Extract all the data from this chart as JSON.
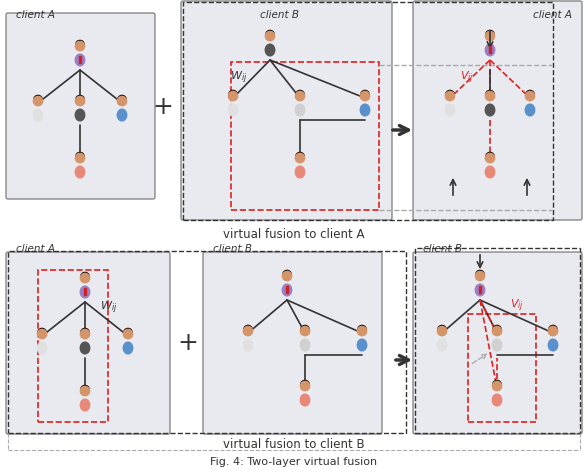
{
  "fig_width": 5.88,
  "fig_height": 4.72,
  "dpi": 100,
  "bg_color": "#ffffff",
  "panel_bg": "#e8eaf0",
  "panel_bg2": "#e0e8e0",
  "title": "Fig. 4: Two-layer virtual fusion",
  "top_caption": "virtual fusion to client A",
  "bottom_caption": "virtual fusion to client B",
  "red_box_color": "#e03030",
  "black_dash_color": "#333333",
  "gray_dash_color": "#aaaaaa",
  "red_dash_color": "#e03030",
  "colors": {
    "purple_shirt": "#9b7fc4",
    "white_shirt": "#e8e8e8",
    "blue_shirt": "#4a90d9",
    "dark_suit": "#444444",
    "salmon_shirt": "#e88070",
    "skin": "#d4956a"
  }
}
